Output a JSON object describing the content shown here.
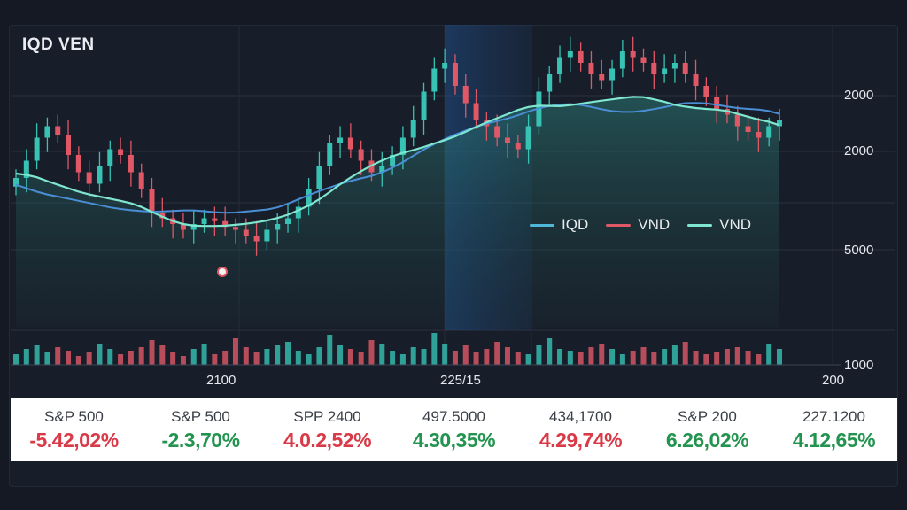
{
  "title": "IQD VEN",
  "colors": {
    "up": "#37c2b4",
    "down": "#e05766",
    "ma_blue": "#4a8fd6",
    "ma_teal": "#7fe6cf",
    "neg_text": "#d93a48",
    "pos_text": "#23944f"
  },
  "chart_data": {
    "type": "candlestick",
    "y_axis_labels": [
      "2000",
      "2000",
      "5000",
      "1000"
    ],
    "x_axis_labels": [
      "2100",
      "225/15",
      "200"
    ],
    "legend": [
      {
        "name": "IQD",
        "color": "#4fb8d8"
      },
      {
        "name": "VND",
        "color": "#e05766"
      },
      {
        "name": "VND",
        "color": "#7fe6cf"
      }
    ],
    "grid": true,
    "highlighted_band": true,
    "price_range": [
      0,
      100
    ],
    "candles_close": [
      52,
      58,
      66,
      70,
      67,
      60,
      54,
      50,
      56,
      62,
      60,
      54,
      48,
      40,
      38,
      36,
      34,
      36,
      38,
      37,
      35,
      34,
      32,
      30,
      34,
      36,
      38,
      42,
      48,
      56,
      64,
      66,
      62,
      58,
      54,
      56,
      60,
      66,
      72,
      82,
      90,
      92,
      84,
      78,
      72,
      70,
      66,
      64,
      62,
      70,
      82,
      88,
      94,
      96,
      92,
      88,
      86,
      90,
      96,
      94,
      92,
      88,
      90,
      92,
      88,
      84,
      80,
      76,
      74,
      70,
      68,
      66,
      70,
      72
    ],
    "volume": [
      12,
      18,
      22,
      14,
      20,
      16,
      10,
      14,
      24,
      18,
      12,
      16,
      20,
      28,
      22,
      14,
      10,
      18,
      24,
      12,
      16,
      30,
      20,
      14,
      18,
      22,
      26,
      16,
      12,
      20,
      34,
      22,
      18,
      14,
      28,
      24,
      16,
      12,
      20,
      18,
      36,
      24,
      16,
      22,
      14,
      18,
      26,
      20,
      14,
      12,
      22,
      30,
      18,
      16,
      14,
      20,
      24,
      18,
      12,
      16,
      20,
      14,
      18,
      22,
      26,
      16,
      12,
      14,
      18,
      20,
      16,
      12,
      24,
      18
    ]
  },
  "ticker": [
    {
      "name": "S&P 500",
      "change": "-5.42,02%",
      "trend": "neg"
    },
    {
      "name": "S&P 500",
      "change": "-2.3,70%",
      "trend": "pos"
    },
    {
      "name": "SPP 2400",
      "change": "4.0.2,52%",
      "trend": "neg"
    },
    {
      "name": "497.5000",
      "change": "4.30,35%",
      "trend": "pos"
    },
    {
      "name": "434,1700",
      "change": "4.29,74%",
      "trend": "neg"
    },
    {
      "name": "S&P 200",
      "change": "6.26,02%",
      "trend": "pos"
    },
    {
      "name": "227.1200",
      "change": "4.12,65%",
      "trend": "pos"
    }
  ]
}
